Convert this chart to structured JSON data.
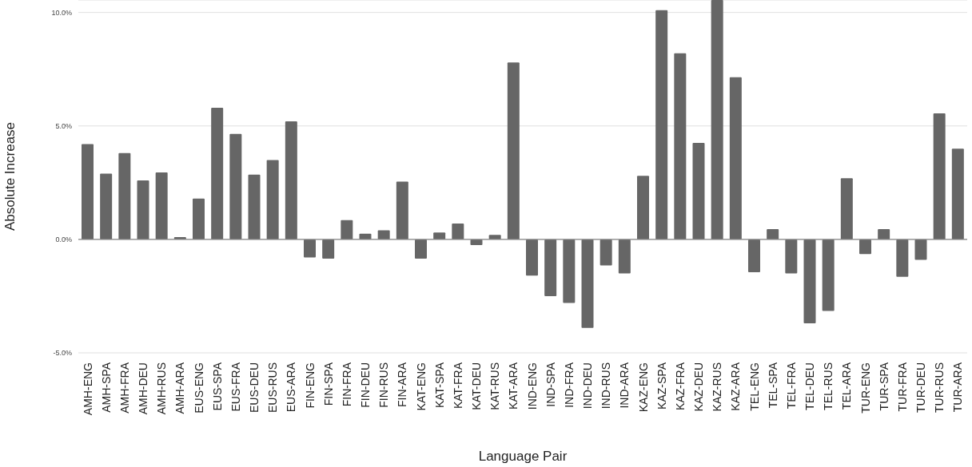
{
  "chart_data": {
    "type": "bar",
    "xlabel": "Language Pair",
    "ylabel": "Absolute Increase",
    "categories": [
      "AMH-ENG",
      "AMH-SPA",
      "AMH-FRA",
      "AMH-DEU",
      "AMH-RUS",
      "AMH-ARA",
      "EUS-ENG",
      "EUS-SPA",
      "EUS-FRA",
      "EUS-DEU",
      "EUS-RUS",
      "EUS-ARA",
      "FIN-ENG",
      "FIN-SPA",
      "FIN-FRA",
      "FIN-DEU",
      "FIN-RUS",
      "FIN-ARA",
      "KAT-ENG",
      "KAT-SPA",
      "KAT-FRA",
      "KAT-DEU",
      "KAT-RUS",
      "KAT-ARA",
      "IND-ENG",
      "IND-SPA",
      "IND-FRA",
      "IND-DEU",
      "IND-RUS",
      "IND-ARA",
      "KAZ-ENG",
      "KAZ-SPA",
      "KAZ-FRA",
      "KAZ-DEU",
      "KAZ-RUS",
      "KAZ-ARA",
      "TEL-ENG",
      "TEL-SPA",
      "TEL-FRA",
      "TEL-DEU",
      "TEL-RUS",
      "TEL-ARA",
      "TUR-ENG",
      "TUR-SPA",
      "TUR-FRA",
      "TUR-DEU",
      "TUR-RUS",
      "TUR-ARA"
    ],
    "values": [
      4.2,
      2.9,
      3.8,
      2.6,
      2.95,
      0.1,
      1.8,
      5.8,
      4.65,
      2.85,
      3.5,
      5.2,
      -0.8,
      -0.85,
      0.85,
      0.25,
      0.4,
      2.55,
      -0.85,
      0.3,
      0.7,
      -0.25,
      0.2,
      7.8,
      -1.6,
      -2.5,
      -2.8,
      -3.9,
      -1.15,
      -1.5,
      2.8,
      10.1,
      8.2,
      4.25,
      10.55,
      7.15,
      -1.45,
      0.45,
      -1.5,
      -3.7,
      -3.15,
      2.7,
      -0.65,
      0.45,
      -1.65,
      -0.9,
      5.55,
      4.0
    ],
    "color": "#666666",
    "ylim": [
      -5,
      10.55
    ],
    "yticks": [
      {
        "value": -5,
        "label": "-5.0%"
      },
      {
        "value": 0,
        "label": "0.0%"
      },
      {
        "value": 5,
        "label": "5.0%"
      },
      {
        "value": 10,
        "label": "10.0%"
      }
    ],
    "grid": "y"
  }
}
